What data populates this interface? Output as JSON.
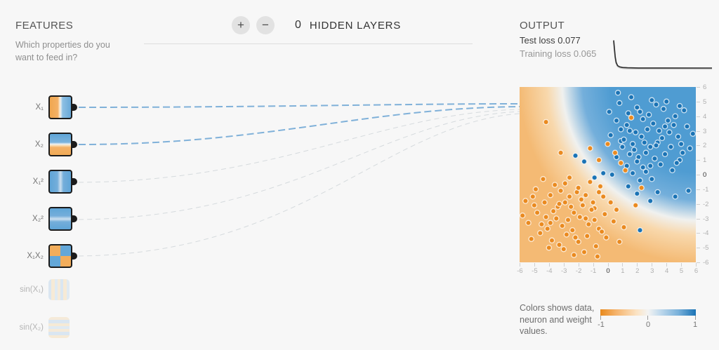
{
  "colors": {
    "accent_orange": "#e8891c",
    "accent_blue": "#1a73b5",
    "heat_orange": "#f4ba74",
    "heat_blue": "#4f9cd2",
    "link_blue": "#6ba4d3"
  },
  "header": {
    "plus": "+",
    "minus": "−",
    "layer_count": "0",
    "layers_label": "HIDDEN LAYERS"
  },
  "features": {
    "title": "FEATURES",
    "subtitle": "Which properties do you want to feed in?",
    "items": [
      {
        "label": "X₁",
        "active": true
      },
      {
        "label": "X₂",
        "active": true
      },
      {
        "label": "X₁²",
        "active": true
      },
      {
        "label": "X₂²",
        "active": true
      },
      {
        "label": "X₁X₂",
        "active": true
      },
      {
        "label": "sin(X₁)",
        "active": false
      },
      {
        "label": "sin(X₂)",
        "active": false
      }
    ]
  },
  "output": {
    "title": "OUTPUT",
    "test_loss": {
      "label": "Test loss",
      "value": "0.077"
    },
    "training_loss": {
      "label": "Training loss",
      "value": "0.065"
    }
  },
  "legend": {
    "text": "Colors shows data, neuron and weight values.",
    "ticks": [
      "-1",
      "0",
      "1"
    ],
    "gradient": [
      "#e8891c",
      "#f5b26a",
      "#fbe3c4",
      "#f3f3f2",
      "#c3dbed",
      "#78b0da",
      "#1a73b5"
    ]
  },
  "chart_data": [
    {
      "type": "scatter",
      "name": "decision-boundary",
      "xlim": [
        -6,
        6
      ],
      "ylim": [
        -6,
        6
      ],
      "x_ticks": [
        -6,
        -5,
        -4,
        -3,
        -2,
        -1,
        0,
        1,
        2,
        3,
        4,
        5,
        6
      ],
      "y_ticks": [
        6,
        5,
        4,
        3,
        2,
        1,
        0,
        -1,
        -2,
        -3,
        -4,
        -5,
        -6
      ],
      "heatmap": {
        "blue": "#4f9cd2",
        "mid_blue": "#74afdb",
        "white": "#f0f1ef",
        "light_orange": "#f8d8ac",
        "orange": "#f4ba74"
      },
      "series": [
        {
          "name": "positive-blue",
          "color": "#1a73b5",
          "points": [
            [
              2.1,
              1.2
            ],
            [
              3.4,
              2.2
            ],
            [
              1.5,
              3.0
            ],
            [
              4.2,
              2.9
            ],
            [
              2.8,
              4.1
            ],
            [
              0.9,
              2.3
            ],
            [
              3.9,
              1.4
            ],
            [
              2.3,
              2.6
            ],
            [
              5.0,
              2.1
            ],
            [
              1.8,
              1.7
            ],
            [
              3.1,
              3.5
            ],
            [
              4.6,
              4.0
            ],
            [
              0.6,
              3.7
            ],
            [
              2.0,
              4.6
            ],
            [
              3.6,
              0.7
            ],
            [
              1.3,
              0.6
            ],
            [
              4.9,
              1.0
            ],
            [
              2.6,
              0.2
            ],
            [
              5.4,
              3.3
            ],
            [
              3.3,
              4.8
            ],
            [
              1.4,
              4.2
            ],
            [
              2.9,
              1.9
            ],
            [
              4.1,
              3.7
            ],
            [
              1.9,
              2.9
            ],
            [
              3.7,
              2.5
            ],
            [
              2.4,
              3.8
            ],
            [
              5.2,
              4.4
            ],
            [
              0.8,
              4.9
            ],
            [
              1.6,
              5.3
            ],
            [
              3.0,
              5.1
            ],
            [
              4.4,
              0.3
            ],
            [
              0.2,
              2.7
            ],
            [
              1.0,
              1.9
            ],
            [
              3.8,
              4.5
            ],
            [
              4.8,
              2.6
            ],
            [
              2.5,
              2.2
            ],
            [
              1.3,
              3.4
            ],
            [
              2.0,
              0.9
            ],
            [
              3.2,
              1.1
            ],
            [
              5.6,
              1.8
            ],
            [
              4.0,
              5.0
            ],
            [
              0.7,
              5.6
            ],
            [
              2.7,
              3.1
            ],
            [
              1.1,
              2.4
            ],
            [
              3.5,
              3.0
            ],
            [
              0.1,
              4.3
            ],
            [
              1.7,
              0.1
            ],
            [
              2.2,
              -0.4
            ],
            [
              4.3,
              1.9
            ],
            [
              5.8,
              2.8
            ],
            [
              3.9,
              3.3
            ],
            [
              2.2,
              4.3
            ],
            [
              1.7,
              2.1
            ],
            [
              0.9,
              3.1
            ],
            [
              2.6,
              1.5
            ],
            [
              4.5,
              3.4
            ],
            [
              3.3,
              2.0
            ],
            [
              1.5,
              1.4
            ],
            [
              2.9,
              0.6
            ],
            [
              0.6,
              1.2
            ],
            [
              5.1,
              1.5
            ],
            [
              3.0,
              -0.3
            ],
            [
              2.4,
              0.5
            ],
            [
              4.7,
              0.8
            ],
            [
              -2.2,
              1.3
            ],
            [
              -1.6,
              0.9
            ],
            [
              -0.3,
              0.1
            ],
            [
              0.3,
              0.0
            ],
            [
              2.0,
              -1.3
            ],
            [
              2.9,
              -1.8
            ],
            [
              4.6,
              -1.5
            ],
            [
              5.5,
              -1.1
            ],
            [
              2.2,
              -3.8
            ],
            [
              1.4,
              -0.8
            ],
            [
              3.4,
              -1.2
            ],
            [
              -0.9,
              -0.2
            ],
            [
              4.9,
              4.7
            ]
          ]
        },
        {
          "name": "negative-orange",
          "color": "#ea8a1f",
          "points": [
            [
              -2.1,
              -1.2
            ],
            [
              -3.4,
              -2.2
            ],
            [
              -1.5,
              -3.0
            ],
            [
              -4.2,
              -2.9
            ],
            [
              -2.8,
              -4.1
            ],
            [
              -0.9,
              -2.3
            ],
            [
              -3.9,
              -1.4
            ],
            [
              -2.3,
              -2.6
            ],
            [
              -5.0,
              -2.1
            ],
            [
              -1.8,
              -1.7
            ],
            [
              -3.1,
              -3.5
            ],
            [
              -4.6,
              -4.0
            ],
            [
              -0.6,
              -3.7
            ],
            [
              -2.0,
              -4.6
            ],
            [
              -3.6,
              -0.7
            ],
            [
              -1.2,
              -0.5
            ],
            [
              -4.9,
              -1.0
            ],
            [
              -2.6,
              -0.2
            ],
            [
              -5.4,
              -3.3
            ],
            [
              -3.3,
              -4.8
            ],
            [
              -1.4,
              -4.2
            ],
            [
              -2.9,
              -1.9
            ],
            [
              -4.1,
              -3.7
            ],
            [
              -0.3,
              -1.5
            ],
            [
              -1.9,
              -2.9
            ],
            [
              -3.7,
              -2.5
            ],
            [
              -2.4,
              -3.8
            ],
            [
              -5.2,
              -4.4
            ],
            [
              -0.8,
              -4.9
            ],
            [
              -1.6,
              -5.3
            ],
            [
              -3.0,
              -5.1
            ],
            [
              -4.4,
              -0.3
            ],
            [
              -0.2,
              -2.7
            ],
            [
              -1.0,
              -1.9
            ],
            [
              -3.8,
              -4.5
            ],
            [
              -4.8,
              -2.6
            ],
            [
              -2.5,
              -2.2
            ],
            [
              -1.3,
              -3.4
            ],
            [
              -0.5,
              -0.8
            ],
            [
              -2.0,
              -0.9
            ],
            [
              -3.2,
              -1.1
            ],
            [
              -5.6,
              -1.8
            ],
            [
              -4.0,
              -5.0
            ],
            [
              -0.7,
              -5.6
            ],
            [
              -2.7,
              -3.1
            ],
            [
              -1.1,
              -2.4
            ],
            [
              -3.5,
              -3.0
            ],
            [
              -0.1,
              -4.3
            ],
            [
              0.4,
              -3.2
            ],
            [
              0.8,
              -4.6
            ],
            [
              0.2,
              -1.9
            ],
            [
              -0.4,
              -3.9
            ],
            [
              1.1,
              -3.6
            ],
            [
              0.6,
              -2.4
            ],
            [
              -2.3,
              -5.5
            ],
            [
              -4.3,
              -1.9
            ],
            [
              -5.8,
              -2.8
            ],
            [
              -3.9,
              -3.3
            ],
            [
              -2.2,
              -4.3
            ],
            [
              -1.7,
              -2.1
            ],
            [
              -0.9,
              -3.1
            ],
            [
              -2.6,
              -1.5
            ],
            [
              -4.5,
              -3.4
            ],
            [
              -3.3,
              -2.0
            ],
            [
              -1.5,
              -1.4
            ],
            [
              -2.9,
              -0.6
            ],
            [
              -0.6,
              -1.2
            ],
            [
              -5.1,
              -1.5
            ],
            [
              -4.2,
              3.6
            ],
            [
              -3.2,
              1.5
            ],
            [
              0.5,
              1.5
            ],
            [
              1.2,
              0.3
            ],
            [
              2.3,
              -0.9
            ],
            [
              0.0,
              2.1
            ],
            [
              -0.6,
              1.0
            ],
            [
              -1.2,
              1.8
            ],
            [
              1.6,
              3.9
            ],
            [
              0.9,
              0.8
            ],
            [
              1.9,
              -2.1
            ]
          ]
        }
      ]
    },
    {
      "type": "line",
      "name": "loss-curve",
      "ylim": [
        0,
        0.6
      ],
      "points": [
        [
          0,
          0.58
        ],
        [
          0.008,
          0.42
        ],
        [
          0.016,
          0.27
        ],
        [
          0.025,
          0.17
        ],
        [
          0.04,
          0.11
        ],
        [
          0.06,
          0.088
        ],
        [
          0.09,
          0.076
        ],
        [
          0.14,
          0.07
        ],
        [
          0.25,
          0.067
        ],
        [
          0.5,
          0.066
        ],
        [
          1,
          0.065
        ]
      ]
    }
  ]
}
